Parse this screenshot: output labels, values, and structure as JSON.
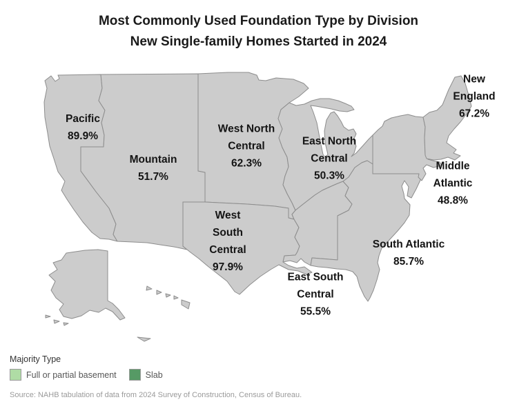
{
  "title": {
    "line1": "Most Commonly Used Foundation Type by Division",
    "line2": "New Single-family Homes Started in 2024"
  },
  "source": "Source: NAHB tabulation of data from 2024 Survey of Construction, Census of Bureau.",
  "colors": {
    "basement": "#AFDCA5",
    "slab": "#569A65",
    "border": "#8C8C8C"
  },
  "legend": {
    "title": "Majority Type",
    "items": [
      {
        "label": "Full or partial basement",
        "fill": "basement"
      },
      {
        "label": "Slab",
        "fill": "slab"
      }
    ]
  },
  "chart_data": {
    "type": "choropleth-map",
    "title": "Most Commonly Used Foundation Type by Division — New Single-family Homes Started in 2024",
    "legend_title": "Majority Type",
    "legend_position": "bottom-left",
    "categories": [
      "Full or partial basement",
      "Slab"
    ],
    "value_meaning": "percent of new single-family homes started in 2024 built with the division's majority foundation type",
    "divisions": [
      {
        "id": "pacific",
        "name": "Pacific",
        "value_pct": 89.9,
        "majority_type": "Slab",
        "fill": "slab",
        "label_lines": [
          "Pacific",
          "89.9%"
        ]
      },
      {
        "id": "mountain",
        "name": "Mountain",
        "value_pct": 51.7,
        "majority_type": "Slab",
        "fill": "slab",
        "label_lines": [
          "Mountain",
          "51.7%"
        ]
      },
      {
        "id": "west_north_central",
        "name": "West North Central",
        "value_pct": 62.3,
        "majority_type": "Full or partial basement",
        "fill": "basement",
        "label_lines": [
          "West North",
          "Central",
          "62.3%"
        ]
      },
      {
        "id": "east_north_central",
        "name": "East North Central",
        "value_pct": 50.3,
        "majority_type": "Full or partial basement",
        "fill": "basement",
        "label_lines": [
          "East North",
          "Central",
          "50.3%"
        ]
      },
      {
        "id": "new_england",
        "name": "New England",
        "value_pct": 67.2,
        "majority_type": "Full or partial basement",
        "fill": "basement",
        "label_lines": [
          "New",
          "England",
          "67.2%"
        ]
      },
      {
        "id": "middle_atlantic",
        "name": "Middle Atlantic",
        "value_pct": 48.8,
        "majority_type": "Full or partial basement",
        "fill": "basement",
        "label_lines": [
          "Middle",
          "Atlantic",
          "48.8%"
        ]
      },
      {
        "id": "south_atlantic",
        "name": "South Atlantic",
        "value_pct": 85.7,
        "majority_type": "Slab",
        "fill": "slab",
        "label_lines": [
          "South Atlantic",
          "85.7%"
        ]
      },
      {
        "id": "east_south_central",
        "name": "East South Central",
        "value_pct": 55.5,
        "majority_type": "Slab",
        "fill": "slab",
        "label_lines": [
          "East South",
          "Central",
          "55.5%"
        ]
      },
      {
        "id": "west_south_central",
        "name": "West South Central",
        "value_pct": 97.9,
        "majority_type": "Slab",
        "fill": "slab",
        "label_lines": [
          "West",
          "South",
          "Central",
          "97.9%"
        ]
      }
    ]
  }
}
